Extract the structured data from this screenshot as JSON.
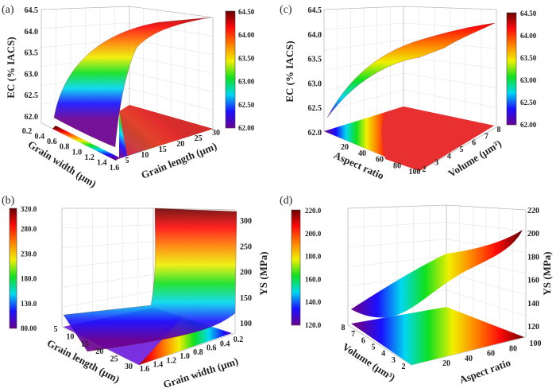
{
  "colormap": [
    "#6a0090",
    "#1a10ff",
    "#00d8f0",
    "#10e020",
    "#f0f000",
    "#ff8000",
    "#ff0a0a",
    "#6a0000"
  ],
  "chart_data": [
    {
      "panel": "(a)",
      "type": "surface3d",
      "zlabel": "EC (% IACS)",
      "xlabel": "Grain width (μm)",
      "ylabel": "Grain length (μm)",
      "zticks": [
        "62.0",
        "62.5",
        "63.0",
        "63.5",
        "64.0",
        "64.5"
      ],
      "zlim": [
        62.0,
        64.5
      ],
      "xticks": [
        "0.2",
        "0.4",
        "0.6",
        "0.8",
        "1.0",
        "1.2",
        "1.4",
        "1.6"
      ],
      "xlim": [
        0.2,
        1.6
      ],
      "yticks": [
        "5",
        "10",
        "15",
        "20",
        "25",
        "30"
      ],
      "ylim": [
        5,
        30
      ],
      "colorbar": {
        "ticks": [
          "64.50",
          "64.00",
          "63.50",
          "63.00",
          "62.50",
          "62.00"
        ],
        "range": [
          62.0,
          64.5
        ]
      },
      "trend": "EC rises from about 62.0 at small grain width to about 64.4 at large grain width and length"
    },
    {
      "panel": "(b)",
      "type": "surface3d",
      "zlabel": "YS (MPa)",
      "xlabel": "Grain length (μm)",
      "ylabel": "Grain width (μm)",
      "zticks": [
        "100",
        "150",
        "200",
        "250",
        "300"
      ],
      "zlim": [
        100,
        320
      ],
      "xticks": [
        "5",
        "10",
        "15",
        "20",
        "25",
        "30"
      ],
      "xlim": [
        5,
        30
      ],
      "yticks": [
        "1.6",
        "1.4",
        "1.2",
        "1.0",
        "0.8",
        "0.6",
        "0.4",
        "0.2"
      ],
      "ylim": [
        0.2,
        1.6
      ],
      "colorbar": {
        "ticks": [
          "320.0",
          "280.0",
          "230.0",
          "180.0",
          "130.0",
          "80.00"
        ],
        "values": [
          320,
          280,
          230,
          180,
          130,
          80
        ],
        "range": [
          80,
          320
        ]
      },
      "trend": "YS rises sharply from about 100 to about 320 as grain width decreases toward 0.2"
    },
    {
      "panel": "(c)",
      "type": "surface3d",
      "zlabel": "EC (% IACS)",
      "xlabel": "Aspect ratio",
      "ylabel": "Volume (μm³)",
      "zticks": [
        "62.0",
        "62.5",
        "63.0",
        "63.5",
        "64.0",
        "64.5"
      ],
      "zlim": [
        62.0,
        64.5
      ],
      "xticks": [
        "20",
        "40",
        "60",
        "80",
        "100"
      ],
      "xlim": [
        0,
        100
      ],
      "yticks": [
        "2",
        "3",
        "4",
        "5",
        "6",
        "7",
        "8"
      ],
      "ylim": [
        2,
        8
      ],
      "colorbar": {
        "ticks": [
          "64.50",
          "64.00",
          "63.50",
          "63.00",
          "62.50",
          "62.00"
        ],
        "range": [
          62.0,
          64.5
        ]
      },
      "trend": "EC rises from about 62.3 at low aspect ratio to about 64.2 at high aspect ratio"
    },
    {
      "panel": "(d)",
      "type": "surface3d",
      "zlabel": "YS (MPa)",
      "xlabel": "Volume (μm³)",
      "ylabel": "Aspect ratio",
      "zticks": [
        "120",
        "140",
        "160",
        "180",
        "200",
        "220"
      ],
      "zlim": [
        115,
        220
      ],
      "xticks": [
        "8",
        "7",
        "6",
        "5",
        "4",
        "3",
        "2"
      ],
      "xlim": [
        2,
        8
      ],
      "yticks": [
        "20",
        "40",
        "60",
        "80",
        "100"
      ],
      "ylim": [
        0,
        100
      ],
      "colorbar": {
        "ticks": [
          "220.0",
          "200.0",
          "180.0",
          "160.0",
          "140.0",
          "120.0"
        ],
        "range": [
          120,
          220
        ]
      },
      "trend": "YS rises from about 130 at low aspect ratio to about 205 at aspect ratio 100"
    }
  ]
}
